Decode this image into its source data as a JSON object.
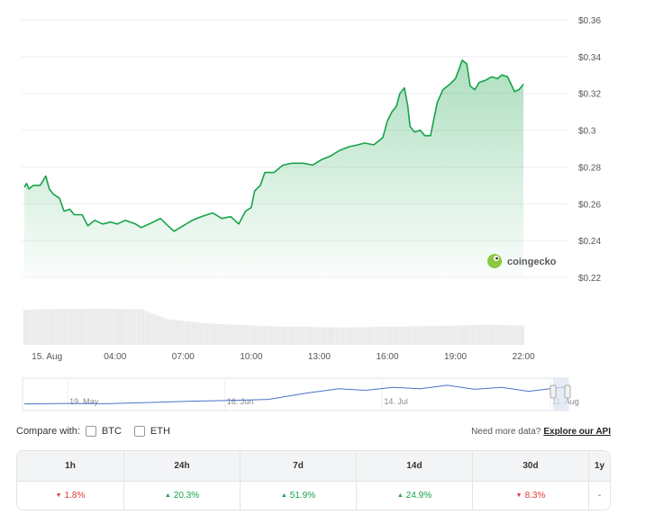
{
  "chart_data": {
    "type": "area",
    "y_ticks": [
      "$0.36",
      "$0.34",
      "$0.32",
      "$0.3",
      "$0.28",
      "$0.26",
      "$0.24",
      "$0.22"
    ],
    "ylim": [
      0.22,
      0.36
    ],
    "x_ticks": [
      {
        "label": "15. Aug",
        "hour": 1
      },
      {
        "label": "04:00",
        "hour": 4
      },
      {
        "label": "07:00",
        "hour": 7
      },
      {
        "label": "10:00",
        "hour": 10
      },
      {
        "label": "13:00",
        "hour": 13
      },
      {
        "label": "16:00",
        "hour": 16
      },
      {
        "label": "19:00",
        "hour": 19
      },
      {
        "label": "22:00",
        "hour": 22
      }
    ],
    "xlim": [
      0,
      23.9
    ],
    "price": [
      [
        0.0,
        0.269
      ],
      [
        0.1,
        0.271
      ],
      [
        0.2,
        0.268
      ],
      [
        0.4,
        0.27
      ],
      [
        0.7,
        0.27
      ],
      [
        0.95,
        0.275
      ],
      [
        1.1,
        0.268
      ],
      [
        1.3,
        0.265
      ],
      [
        1.55,
        0.263
      ],
      [
        1.75,
        0.256
      ],
      [
        2.0,
        0.257
      ],
      [
        2.2,
        0.254
      ],
      [
        2.55,
        0.254
      ],
      [
        2.8,
        0.248
      ],
      [
        3.1,
        0.251
      ],
      [
        3.45,
        0.249
      ],
      [
        3.8,
        0.25
      ],
      [
        4.1,
        0.249
      ],
      [
        4.45,
        0.251
      ],
      [
        4.9,
        0.249
      ],
      [
        5.15,
        0.247
      ],
      [
        5.5,
        0.249
      ],
      [
        6.0,
        0.252
      ],
      [
        6.25,
        0.249
      ],
      [
        6.6,
        0.245
      ],
      [
        7.0,
        0.248
      ],
      [
        7.4,
        0.251
      ],
      [
        7.8,
        0.253
      ],
      [
        8.3,
        0.255
      ],
      [
        8.7,
        0.252
      ],
      [
        9.1,
        0.253
      ],
      [
        9.45,
        0.249
      ],
      [
        9.75,
        0.256
      ],
      [
        10.0,
        0.258
      ],
      [
        10.15,
        0.267
      ],
      [
        10.4,
        0.27
      ],
      [
        10.6,
        0.277
      ],
      [
        11.0,
        0.277
      ],
      [
        11.4,
        0.281
      ],
      [
        11.8,
        0.282
      ],
      [
        12.3,
        0.282
      ],
      [
        12.7,
        0.281
      ],
      [
        13.1,
        0.284
      ],
      [
        13.5,
        0.286
      ],
      [
        13.9,
        0.289
      ],
      [
        14.3,
        0.291
      ],
      [
        14.7,
        0.292
      ],
      [
        15.0,
        0.293
      ],
      [
        15.4,
        0.292
      ],
      [
        15.8,
        0.296
      ],
      [
        16.0,
        0.305
      ],
      [
        16.2,
        0.31
      ],
      [
        16.4,
        0.313
      ],
      [
        16.55,
        0.32
      ],
      [
        16.75,
        0.323
      ],
      [
        16.9,
        0.313
      ],
      [
        17.0,
        0.302
      ],
      [
        17.2,
        0.299
      ],
      [
        17.45,
        0.3
      ],
      [
        17.65,
        0.297
      ],
      [
        17.9,
        0.297
      ],
      [
        18.0,
        0.303
      ],
      [
        18.2,
        0.315
      ],
      [
        18.45,
        0.322
      ],
      [
        18.75,
        0.325
      ],
      [
        19.0,
        0.328
      ],
      [
        19.15,
        0.333
      ],
      [
        19.3,
        0.338
      ],
      [
        19.5,
        0.336
      ],
      [
        19.65,
        0.324
      ],
      [
        19.85,
        0.322
      ],
      [
        20.05,
        0.326
      ],
      [
        20.3,
        0.327
      ],
      [
        20.6,
        0.329
      ],
      [
        20.85,
        0.328
      ],
      [
        21.05,
        0.33
      ],
      [
        21.3,
        0.329
      ],
      [
        21.45,
        0.325
      ],
      [
        21.6,
        0.321
      ],
      [
        21.8,
        0.322
      ],
      [
        22.0,
        0.325
      ]
    ],
    "volume": [
      [
        0.0,
        0.95
      ],
      [
        1.5,
        0.97
      ],
      [
        3.5,
        0.98
      ],
      [
        5.2,
        0.96
      ],
      [
        5.5,
        0.88
      ],
      [
        6.3,
        0.7
      ],
      [
        8.0,
        0.58
      ],
      [
        11.0,
        0.5
      ],
      [
        14.0,
        0.47
      ],
      [
        17.0,
        0.5
      ],
      [
        19.0,
        0.52
      ],
      [
        20.5,
        0.55
      ],
      [
        22.0,
        0.52
      ]
    ],
    "navigator": {
      "x_ticks": [
        "19. May",
        "16. Jun",
        "14. Jul",
        "11. Aug"
      ],
      "series": [
        [
          0.0,
          0.12
        ],
        [
          0.08,
          0.14
        ],
        [
          0.15,
          0.13
        ],
        [
          0.22,
          0.17
        ],
        [
          0.3,
          0.22
        ],
        [
          0.38,
          0.26
        ],
        [
          0.45,
          0.3
        ],
        [
          0.52,
          0.55
        ],
        [
          0.58,
          0.72
        ],
        [
          0.63,
          0.66
        ],
        [
          0.68,
          0.78
        ],
        [
          0.73,
          0.72
        ],
        [
          0.78,
          0.86
        ],
        [
          0.83,
          0.7
        ],
        [
          0.88,
          0.78
        ],
        [
          0.93,
          0.62
        ],
        [
          0.97,
          0.72
        ],
        [
          1.0,
          0.8
        ]
      ]
    }
  },
  "brand": {
    "name": "coingecko"
  },
  "compare": {
    "label": "Compare with:",
    "options": [
      "BTC",
      "ETH"
    ],
    "api_note": "Need more data?",
    "api_link": "Explore our API"
  },
  "performance": {
    "headers": [
      "1h",
      "24h",
      "7d",
      "14d",
      "30d",
      "1y"
    ],
    "values": [
      {
        "text": "1.8%",
        "direction": "down"
      },
      {
        "text": "20.3%",
        "direction": "up"
      },
      {
        "text": "51.9%",
        "direction": "up"
      },
      {
        "text": "24.9%",
        "direction": "up"
      },
      {
        "text": "8.3%",
        "direction": "down"
      },
      {
        "text": "-",
        "direction": "none"
      }
    ]
  },
  "colors": {
    "line": "#16a34a",
    "down": "#e53935",
    "up": "#16a34a",
    "volume": "#e8e8e8",
    "navigator": "#4a72c8"
  }
}
